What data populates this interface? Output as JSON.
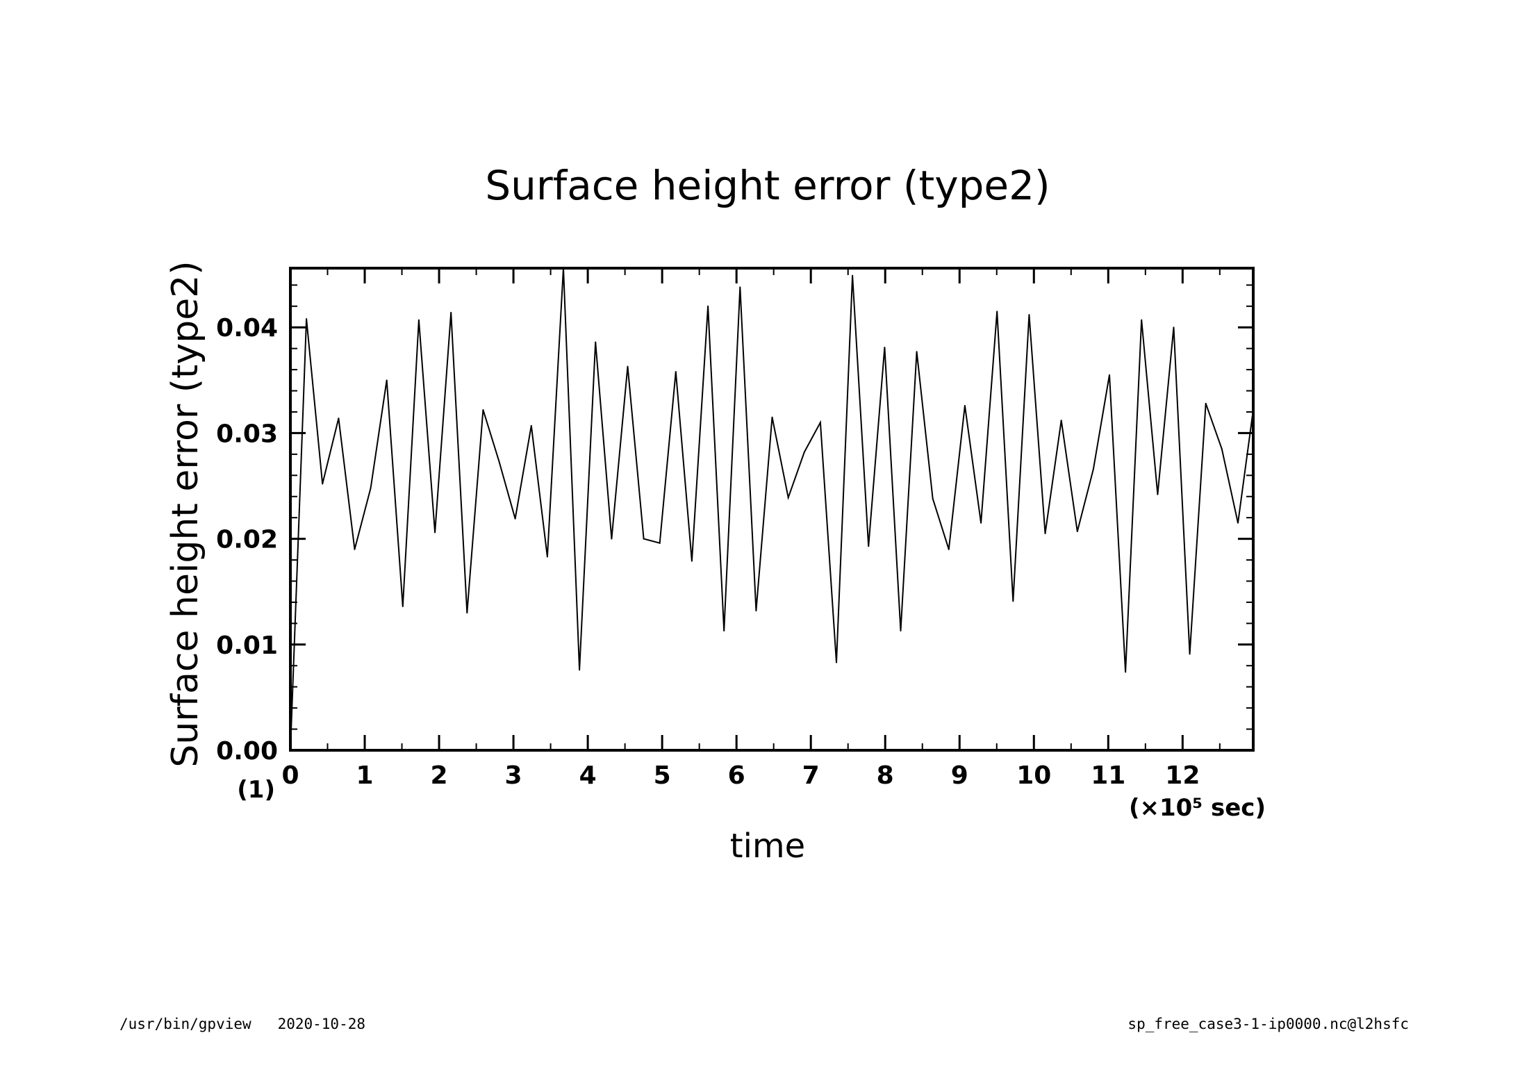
{
  "chart_data": {
    "type": "line",
    "title": "Surface height error (type2)",
    "xlabel": "time",
    "ylabel": "Surface height error (type2)",
    "x_unit": "(×10⁵ sec)",
    "y_unit": "(1)",
    "xlim": [
      0,
      12.95
    ],
    "ylim": [
      0,
      0.0456
    ],
    "x_ticks": [
      0,
      1,
      2,
      3,
      4,
      5,
      6,
      7,
      8,
      9,
      10,
      11,
      12
    ],
    "x_tick_labels": [
      "0",
      "1",
      "2",
      "3",
      "4",
      "5",
      "6",
      "7",
      "8",
      "9",
      "10",
      "11",
      "12"
    ],
    "y_ticks": [
      0,
      0.01,
      0.02,
      0.03,
      0.04
    ],
    "y_tick_labels": [
      "0.00",
      "0.01",
      "0.02",
      "0.03",
      "0.04"
    ],
    "grid": false,
    "color": "#000000",
    "series": [
      {
        "x": [
          0,
          0.216,
          0.432,
          0.648,
          0.864,
          1.08,
          1.296,
          1.512,
          1.728,
          1.944,
          2.16,
          2.376,
          2.592,
          2.808,
          3.024,
          3.24,
          3.456,
          3.672,
          3.888,
          4.104,
          4.32,
          4.536,
          4.752,
          4.968,
          5.184,
          5.4,
          5.616,
          5.832,
          6.048,
          6.264,
          6.48,
          6.696,
          6.912,
          7.128,
          7.344,
          7.56,
          7.776,
          7.992,
          8.208,
          8.424,
          8.64,
          8.856,
          9.072,
          9.288,
          9.504,
          9.72,
          9.936,
          10.152,
          10.368,
          10.584,
          10.8,
          11.016,
          11.232,
          11.448,
          11.664,
          11.88,
          12.096,
          12.312,
          12.528,
          12.744,
          12.95
        ],
        "y": [
          0.0,
          0.0408,
          0.0252,
          0.0314,
          0.019,
          0.0248,
          0.035,
          0.0136,
          0.0407,
          0.0206,
          0.0414,
          0.013,
          0.0322,
          0.0273,
          0.0219,
          0.0307,
          0.0183,
          0.0456,
          0.0076,
          0.0386,
          0.02,
          0.0363,
          0.02,
          0.0196,
          0.0358,
          0.0179,
          0.042,
          0.0113,
          0.0438,
          0.0132,
          0.0315,
          0.0239,
          0.0282,
          0.031,
          0.0083,
          0.0449,
          0.0193,
          0.0381,
          0.0113,
          0.0377,
          0.0238,
          0.019,
          0.0326,
          0.0215,
          0.0415,
          0.0141,
          0.0412,
          0.0205,
          0.0312,
          0.0207,
          0.0266,
          0.0355,
          0.0074,
          0.0407,
          0.0242,
          0.04,
          0.0091,
          0.0328,
          0.0285,
          0.0215,
          0.0322
        ]
      }
    ]
  },
  "footer": {
    "left": "/usr/bin/gpview   2020-10-28",
    "right": "sp_free_case3-1-ip0000.nc@l2hsfc"
  }
}
